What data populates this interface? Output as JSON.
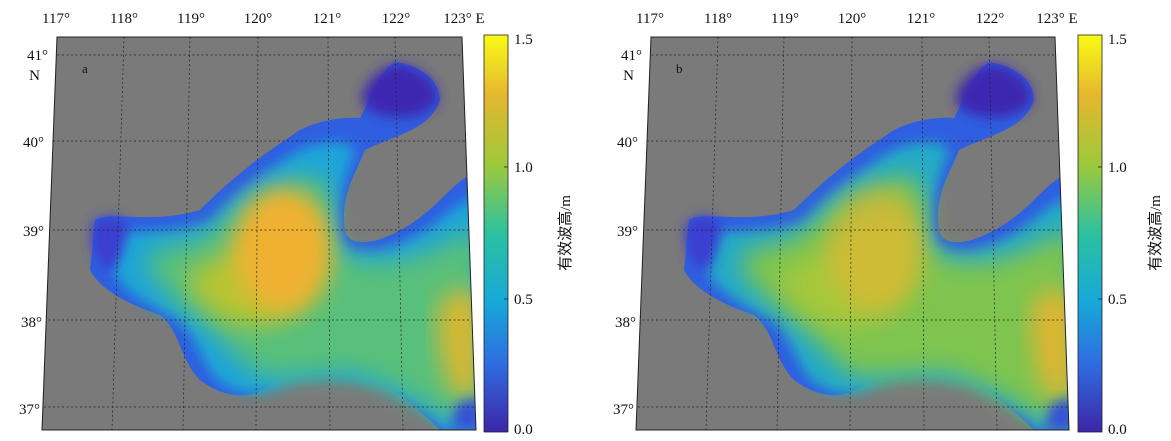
{
  "panels": [
    {
      "id": "a",
      "label": "a",
      "lon_labels": [
        "117°",
        "118°",
        "119°",
        "120°",
        "121°",
        "122°",
        "123° E"
      ],
      "lat_labels": [
        "41°",
        "40°",
        "39°",
        "38°",
        "37°"
      ],
      "lat_unit": "N",
      "colorbar": {
        "ticks": [
          "1.5",
          "1.0",
          "0.5",
          "0.0"
        ],
        "label": "有效波高/m"
      },
      "hotspot_intensity": 1.0
    },
    {
      "id": "b",
      "label": "b",
      "lon_labels": [
        "117°",
        "118°",
        "119°",
        "120°",
        "121°",
        "122°",
        "123° E"
      ],
      "lat_labels": [
        "41°",
        "40°",
        "39°",
        "38°",
        "37°"
      ],
      "lat_unit": "N",
      "colorbar": {
        "ticks": [
          "1.5",
          "1.0",
          "0.5",
          "0.0"
        ],
        "label": "有效波高/m"
      },
      "hotspot_intensity": 0.55
    }
  ],
  "colors": {
    "land": "#7a7a7a",
    "colormap": [
      "#3d26a8",
      "#2f6ce0",
      "#17a9d8",
      "#2cc1a0",
      "#9cc93c",
      "#e6b72e",
      "#f9fb14"
    ]
  }
}
